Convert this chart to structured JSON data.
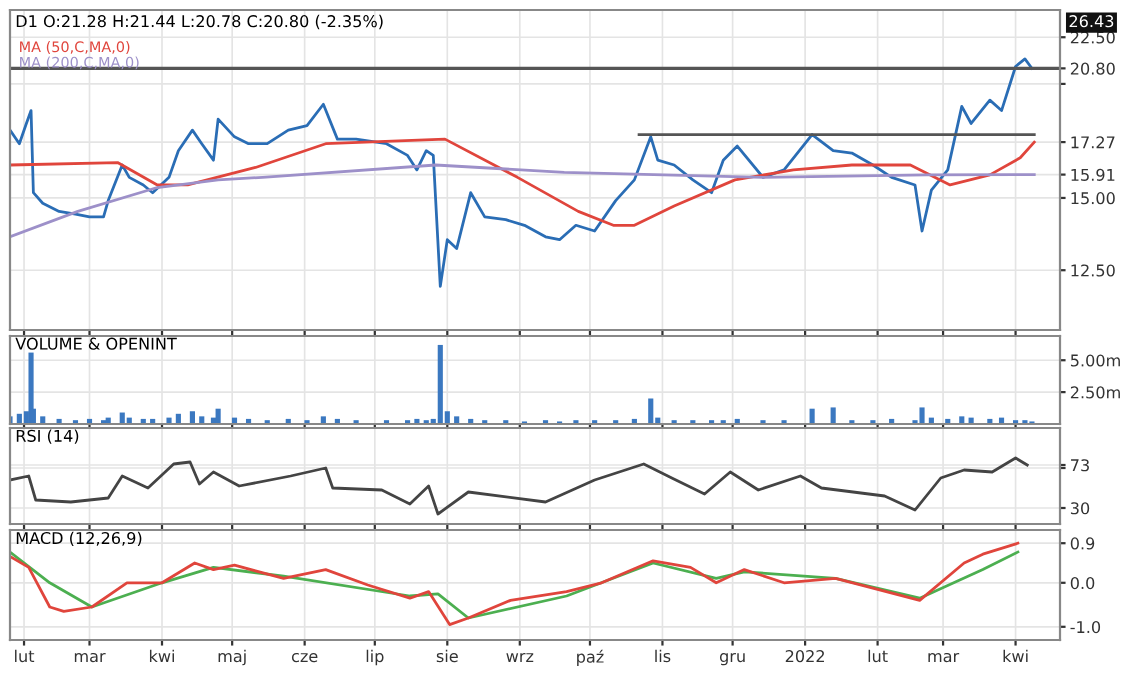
{
  "chart_data": [
    {
      "type": "line",
      "title": "D1 O:21.28 H:21.44 L:20.78 C:20.80 (-2.35%)",
      "log": true,
      "grid": true,
      "legend": "top left",
      "tick_labels": "y",
      "xlim": [
        "2021-01-26",
        "2022-04-20"
      ],
      "ylim": [
        10.75,
        24.1
      ],
      "yticks": [
        {
          "value": 12.5,
          "label": "12.50"
        },
        {
          "value": 15,
          "label": "15.00"
        },
        {
          "value": 15.91,
          "label": "15.91"
        },
        {
          "value": 17.27,
          "label": "17.27"
        },
        {
          "value": 20,
          "label": null
        },
        {
          "value": 20.8,
          "label": "20.80"
        },
        {
          "value": 22.5,
          "label": "22.50"
        }
      ],
      "series": [
        {
          "color": "#2a6db5",
          "x": [
            "2021-01-26",
            "2021-01-30",
            "2021-02-02",
            "2021-02-04",
            "2021-02-05",
            "2021-02-09",
            "2021-02-16",
            "2021-02-23",
            "2021-03-01",
            "2021-03-07",
            "2021-03-09",
            "2021-03-15",
            "2021-03-18",
            "2021-03-24",
            "2021-03-28",
            "2021-04-04",
            "2021-04-08",
            "2021-04-14",
            "2021-04-18",
            "2021-04-23",
            "2021-04-25",
            "2021-05-02",
            "2021-05-08",
            "2021-05-16",
            "2021-05-25",
            "2021-06-02",
            "2021-06-09",
            "2021-06-15",
            "2021-06-23",
            "2021-07-06",
            "2021-07-15",
            "2021-07-19",
            "2021-07-23",
            "2021-07-26",
            "2021-07-29",
            "2021-08-01",
            "2021-08-05",
            "2021-08-11",
            "2021-08-17",
            "2021-08-26",
            "2021-09-03",
            "2021-09-12",
            "2021-09-18",
            "2021-09-25",
            "2021-10-03",
            "2021-10-12",
            "2021-10-20",
            "2021-10-27",
            "2021-10-30",
            "2021-11-06",
            "2021-11-14",
            "2021-11-22",
            "2021-11-27",
            "2021-12-03",
            "2021-12-14",
            "2021-12-23",
            "2022-01-04",
            "2022-01-13",
            "2022-01-21",
            "2022-01-30",
            "2022-02-07",
            "2022-02-17",
            "2022-02-20",
            "2022-02-24",
            "2022-03-03",
            "2022-03-09",
            "2022-03-13",
            "2022-03-21",
            "2022-03-26",
            "2022-04-01",
            "2022-04-05",
            "2022-04-08"
          ],
          "values": [
            17.8,
            17.2,
            18.1,
            18.7,
            15.2,
            14.8,
            14.5,
            14.4,
            14.3,
            14.3,
            14.9,
            16.3,
            15.8,
            15.5,
            15.2,
            15.8,
            16.9,
            17.8,
            17.2,
            16.5,
            18.3,
            17.5,
            17.2,
            17.2,
            17.8,
            18.0,
            19.0,
            17.4,
            17.4,
            17.2,
            16.7,
            16.1,
            16.9,
            16.7,
            12.0,
            13.5,
            13.2,
            15.2,
            14.3,
            14.2,
            14.0,
            13.6,
            13.5,
            14.0,
            13.8,
            14.9,
            15.7,
            17.5,
            16.5,
            16.3,
            15.7,
            15.2,
            16.5,
            17.1,
            15.8,
            16.1,
            17.6,
            16.9,
            16.8,
            16.3,
            15.8,
            15.5,
            13.8,
            15.3,
            16.1,
            18.9,
            18.1,
            19.2,
            18.7,
            20.9,
            21.3,
            20.8
          ]
        },
        {
          "name": "MA (50,C,MA,0)",
          "color": "#e0453c",
          "x": [
            "2021-01-26",
            "2021-03-13",
            "2021-03-30",
            "2021-04-12",
            "2021-05-11",
            "2021-06-10",
            "2021-07-31",
            "2021-08-31",
            "2021-09-26",
            "2021-10-11",
            "2021-10-20",
            "2021-11-06",
            "2021-12-02",
            "2021-12-27",
            "2022-01-21",
            "2022-02-15",
            "2022-03-04",
            "2022-03-21",
            "2022-04-03",
            "2022-04-09"
          ],
          "values": [
            16.3,
            16.4,
            15.5,
            15.5,
            16.2,
            17.2,
            17.4,
            15.8,
            14.5,
            14.0,
            14.0,
            14.7,
            15.7,
            16.1,
            16.3,
            16.3,
            15.5,
            15.9,
            16.6,
            17.27
          ]
        },
        {
          "name": "MA (200,C,MA,0)",
          "color": "#9d90c9",
          "x": [
            "2021-01-26",
            "2021-02-24",
            "2021-03-30",
            "2021-04-25",
            "2021-05-14",
            "2021-07-27",
            "2021-09-20",
            "2021-12-14",
            "2022-02-22",
            "2022-04-09"
          ],
          "values": [
            13.6,
            14.5,
            15.4,
            15.7,
            15.8,
            16.3,
            16.0,
            15.8,
            15.9,
            15.91
          ]
        },
        {
          "color": "#555555",
          "x": [
            "2021-10-22",
            "2022-04-09"
          ],
          "values": [
            17.6,
            17.6
          ]
        }
      ],
      "ref_lines": [
        {
          "axis": "y",
          "value": 20.8,
          "color": "#555555"
        }
      ],
      "annotations": [
        "26.43"
      ]
    },
    {
      "type": "bar",
      "title": "VOLUME & OPENINT",
      "grid": true,
      "tick_labels": "y",
      "xlim": [
        "2021-01-26",
        "2022-04-20"
      ],
      "ylim": [
        0,
        6.9
      ],
      "yticks": [
        {
          "value": 2.5,
          "label": "2.50m"
        },
        {
          "value": 5,
          "label": "5.00m"
        }
      ],
      "series": [
        {
          "color": "#3b78c0",
          "x": [
            "2021-01-26",
            "2021-01-30",
            "2021-02-02",
            "2021-02-04",
            "2021-02-05",
            "2021-02-09",
            "2021-02-16",
            "2021-02-23",
            "2021-03-01",
            "2021-03-07",
            "2021-03-09",
            "2021-03-15",
            "2021-03-18",
            "2021-03-24",
            "2021-03-28",
            "2021-04-04",
            "2021-04-08",
            "2021-04-14",
            "2021-04-18",
            "2021-04-23",
            "2021-04-25",
            "2021-05-02",
            "2021-05-08",
            "2021-05-16",
            "2021-05-25",
            "2021-06-02",
            "2021-06-09",
            "2021-06-15",
            "2021-06-23",
            "2021-07-06",
            "2021-07-15",
            "2021-07-19",
            "2021-07-23",
            "2021-07-26",
            "2021-07-29",
            "2021-08-01",
            "2021-08-05",
            "2021-08-11",
            "2021-08-17",
            "2021-08-26",
            "2021-09-03",
            "2021-09-12",
            "2021-09-18",
            "2021-09-25",
            "2021-10-03",
            "2021-10-12",
            "2021-10-20",
            "2021-10-27",
            "2021-10-30",
            "2021-11-06",
            "2021-11-14",
            "2021-11-22",
            "2021-11-27",
            "2021-12-03",
            "2021-12-14",
            "2021-12-23",
            "2022-01-04",
            "2022-01-13",
            "2022-01-21",
            "2022-01-30",
            "2022-02-07",
            "2022-02-17",
            "2022-02-20",
            "2022-02-24",
            "2022-03-03",
            "2022-03-09",
            "2022-03-13",
            "2022-03-21",
            "2022-03-26",
            "2022-04-01",
            "2022-04-05",
            "2022-04-08"
          ],
          "values": [
            0.6,
            0.8,
            1.0,
            5.6,
            1.2,
            0.6,
            0.4,
            0.3,
            0.4,
            0.3,
            0.5,
            0.9,
            0.5,
            0.4,
            0.4,
            0.5,
            0.8,
            1.0,
            0.6,
            0.5,
            1.2,
            0.5,
            0.4,
            0.3,
            0.4,
            0.3,
            0.6,
            0.4,
            0.3,
            0.3,
            0.3,
            0.4,
            0.3,
            0.4,
            6.2,
            1.0,
            0.6,
            0.4,
            0.3,
            0.3,
            0.2,
            0.3,
            0.2,
            0.3,
            0.3,
            0.3,
            0.4,
            2.0,
            0.5,
            0.3,
            0.3,
            0.3,
            0.3,
            0.4,
            0.3,
            0.3,
            1.2,
            1.3,
            0.3,
            0.3,
            0.4,
            0.3,
            1.3,
            0.5,
            0.4,
            0.6,
            0.5,
            0.4,
            0.5,
            0.3,
            0.3,
            0.2
          ]
        }
      ]
    },
    {
      "type": "line",
      "title": "RSI (14)",
      "grid": true,
      "tick_labels": "y",
      "xlim": [
        "2021-01-26",
        "2022-04-20"
      ],
      "ylim": [
        14,
        110
      ],
      "yticks": [
        30,
        {
          "value": 70,
          "label": null
        },
        {
          "value": 73,
          "label": "73"
        }
      ],
      "series": [
        {
          "color": "#444444",
          "x": [
            "2021-01-26",
            "2021-02-03",
            "2021-02-06",
            "2021-02-21",
            "2021-03-09",
            "2021-03-15",
            "2021-03-26",
            "2021-04-06",
            "2021-04-13",
            "2021-04-17",
            "2021-04-23",
            "2021-05-04",
            "2021-05-26",
            "2021-06-10",
            "2021-06-13",
            "2021-07-04",
            "2021-07-16",
            "2021-07-24",
            "2021-07-28",
            "2021-08-10",
            "2021-09-12",
            "2021-10-03",
            "2021-10-24",
            "2021-11-05",
            "2021-11-19",
            "2021-11-30",
            "2021-12-12",
            "2021-12-30",
            "2022-01-08",
            "2022-02-04",
            "2022-02-17",
            "2022-02-28",
            "2022-03-10",
            "2022-03-22",
            "2022-04-01",
            "2022-04-06"
          ],
          "values": [
            58,
            62,
            38,
            36,
            40,
            62,
            50,
            74,
            76,
            54,
            66,
            52,
            62,
            70,
            50,
            48,
            34,
            52,
            24,
            46,
            36,
            58,
            74,
            60,
            44,
            66,
            48,
            62,
            50,
            42,
            28,
            60,
            68,
            66,
            80,
            73
          ]
        }
      ]
    },
    {
      "type": "line",
      "title": "MACD (12,26,9)",
      "grid": true,
      "xlim": [
        "2021-01-26",
        "2022-04-20"
      ],
      "xticks": [
        {
          "value": "2021-02-01",
          "label": "lut"
        },
        {
          "value": "2021-03-01",
          "label": "mar"
        },
        {
          "value": "2021-04-01",
          "label": "kwi"
        },
        {
          "value": "2021-05-01",
          "label": "maj"
        },
        {
          "value": "2021-06-01",
          "label": "cze"
        },
        {
          "value": "2021-07-01",
          "label": "lip"
        },
        {
          "value": "2021-08-01",
          "label": "sie"
        },
        {
          "value": "2021-09-01",
          "label": "wrz"
        },
        {
          "value": "2021-10-01",
          "label": "paź"
        },
        {
          "value": "2021-11-01",
          "label": "lis"
        },
        {
          "value": "2021-12-01",
          "label": "gru"
        },
        {
          "value": "2022-01-01",
          "label": "2022"
        },
        {
          "value": "2022-02-01",
          "label": "lut"
        },
        {
          "value": "2022-03-01",
          "label": "mar"
        },
        {
          "value": "2022-04-01",
          "label": "kwi"
        }
      ],
      "ylim": [
        -1.3,
        1.2
      ],
      "yticks": [
        {
          "value": -1,
          "label": "-1.0"
        },
        {
          "value": 0,
          "label": "0.0"
        },
        {
          "value": 0.9,
          "label": "0.9"
        }
      ],
      "series": [
        {
          "color": "#4caf50",
          "x": [
            "2021-01-26",
            "2021-02-12",
            "2021-03-02",
            "2021-04-01",
            "2021-04-23",
            "2021-05-23",
            "2021-07-16",
            "2021-07-28",
            "2021-08-10",
            "2021-09-21",
            "2021-10-28",
            "2021-11-24",
            "2021-12-06",
            "2022-01-14",
            "2022-02-19",
            "2022-03-18",
            "2022-04-02"
          ],
          "values": [
            0.7,
            0.0,
            -0.55,
            0.0,
            0.35,
            0.15,
            -0.3,
            -0.25,
            -0.8,
            -0.3,
            0.45,
            0.1,
            0.25,
            0.1,
            -0.35,
            0.3,
            0.7
          ]
        },
        {
          "color": "#e0453c",
          "x": [
            "2021-01-26",
            "2021-02-03",
            "2021-02-12",
            "2021-02-18",
            "2021-03-02",
            "2021-03-17",
            "2021-04-01",
            "2021-04-15",
            "2021-04-23",
            "2021-05-02",
            "2021-05-23",
            "2021-06-10",
            "2021-06-28",
            "2021-07-16",
            "2021-07-24",
            "2021-08-02",
            "2021-08-10",
            "2021-08-28",
            "2021-09-21",
            "2021-10-06",
            "2021-10-28",
            "2021-11-13",
            "2021-11-24",
            "2021-12-06",
            "2021-12-23",
            "2022-01-14",
            "2022-02-19",
            "2022-03-10",
            "2022-03-18",
            "2022-04-02"
          ],
          "values": [
            0.6,
            0.35,
            -0.55,
            -0.65,
            -0.55,
            0.0,
            0.0,
            0.45,
            0.3,
            0.4,
            0.1,
            0.3,
            -0.05,
            -0.35,
            -0.2,
            -0.95,
            -0.8,
            -0.4,
            -0.2,
            0.0,
            0.5,
            0.35,
            0.0,
            0.3,
            0.0,
            0.1,
            -0.4,
            0.45,
            0.65,
            0.9
          ]
        }
      ]
    }
  ]
}
